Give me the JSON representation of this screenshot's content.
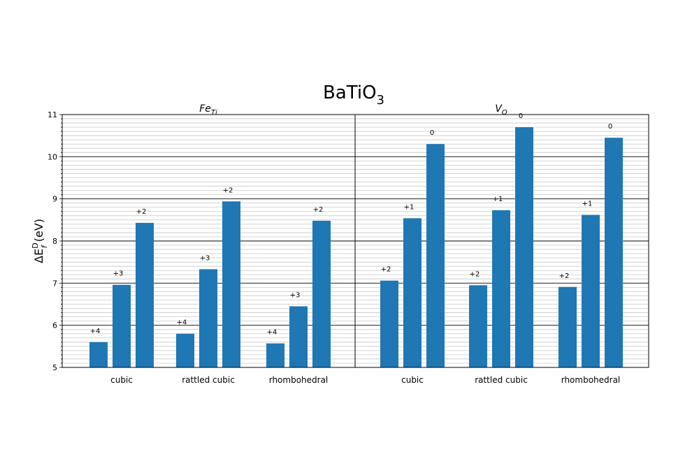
{
  "title_main": "BaTiO",
  "title_sub": "3",
  "ylabel": {
    "delta": "ΔE",
    "sup": "D",
    "sub": "f",
    "unit": " (eV)"
  },
  "chart_data": [
    {
      "type": "bar",
      "panel_title": {
        "base": "Fe",
        "sub": "Ti"
      },
      "ylim": [
        5,
        11
      ],
      "yticks": [
        "5",
        "6",
        "7",
        "8",
        "9",
        "10",
        "11"
      ],
      "grid": "major and minor horizontal lines",
      "categories": [
        "cubic",
        "rattled cubic",
        "rhombohedral"
      ],
      "groups": [
        {
          "category": "cubic",
          "bars": [
            {
              "label": "+4",
              "value": 5.6
            },
            {
              "label": "+3",
              "value": 6.96
            },
            {
              "label": "+2",
              "value": 8.43
            }
          ]
        },
        {
          "category": "rattled cubic",
          "bars": [
            {
              "label": "+4",
              "value": 5.8
            },
            {
              "label": "+3",
              "value": 7.33
            },
            {
              "label": "+2",
              "value": 8.94
            }
          ]
        },
        {
          "category": "rhombohedral",
          "bars": [
            {
              "label": "+4",
              "value": 5.57
            },
            {
              "label": "+3",
              "value": 6.45
            },
            {
              "label": "+2",
              "value": 8.48
            }
          ]
        }
      ],
      "bar_color": "#1f77b4"
    },
    {
      "type": "bar",
      "panel_title": {
        "base": "V",
        "sub": "O"
      },
      "ylim": [
        5,
        11
      ],
      "grid": "major and minor horizontal lines",
      "categories": [
        "cubic",
        "rattled cubic",
        "rhombohedral"
      ],
      "groups": [
        {
          "category": "cubic",
          "bars": [
            {
              "label": "+2",
              "value": 7.06
            },
            {
              "label": "+1",
              "value": 8.54
            },
            {
              "label": "0",
              "value": 10.3
            }
          ]
        },
        {
          "category": "rattled cubic",
          "bars": [
            {
              "label": "+2",
              "value": 6.95
            },
            {
              "label": "+1",
              "value": 8.73
            },
            {
              "label": "0",
              "value": 10.7
            }
          ]
        },
        {
          "category": "rhombohedral",
          "bars": [
            {
              "label": "+2",
              "value": 6.91
            },
            {
              "label": "+1",
              "value": 8.62
            },
            {
              "label": "0",
              "value": 10.45
            }
          ]
        }
      ],
      "bar_color": "#1f77b4"
    }
  ]
}
